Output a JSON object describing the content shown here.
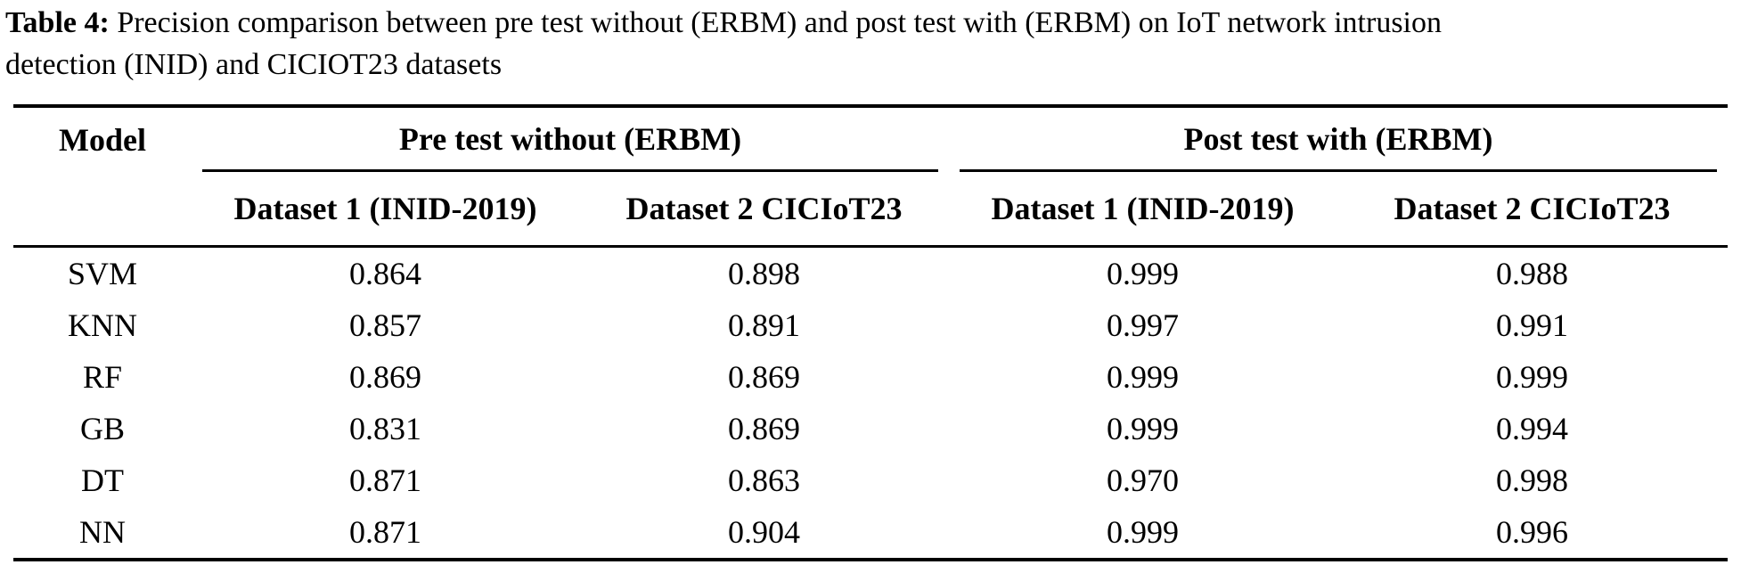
{
  "caption": {
    "label": "Table 4:",
    "line1_rest": " Precision comparison between pre test without (ERBM) and post test with (ERBM) on IoT network intrusion",
    "line2": "detection (INID) and CICIOT23 datasets"
  },
  "table": {
    "model_header": "Model",
    "groups": [
      {
        "label": "Pre test without (ERBM)",
        "columns": [
          "Dataset 1 (INID-2019)",
          "Dataset 2 CICIoT23"
        ]
      },
      {
        "label": "Post test with (ERBM)",
        "columns": [
          "Dataset 1 (INID-2019)",
          "Dataset 2 CICIoT23"
        ]
      }
    ],
    "rows": [
      {
        "model": "SVM",
        "values": [
          "0.864",
          "0.898",
          "0.999",
          "0.988"
        ]
      },
      {
        "model": "KNN",
        "values": [
          "0.857",
          "0.891",
          "0.997",
          "0.991"
        ]
      },
      {
        "model": "RF",
        "values": [
          "0.869",
          "0.869",
          "0.999",
          "0.999"
        ]
      },
      {
        "model": "GB",
        "values": [
          "0.831",
          "0.869",
          "0.999",
          "0.994"
        ]
      },
      {
        "model": "DT",
        "values": [
          "0.871",
          "0.863",
          "0.970",
          "0.998"
        ]
      },
      {
        "model": "NN",
        "values": [
          "0.871",
          "0.904",
          "0.999",
          "0.996"
        ]
      }
    ]
  },
  "colors": {
    "text": "#000000",
    "rule": "#000000",
    "background": "#ffffff"
  }
}
